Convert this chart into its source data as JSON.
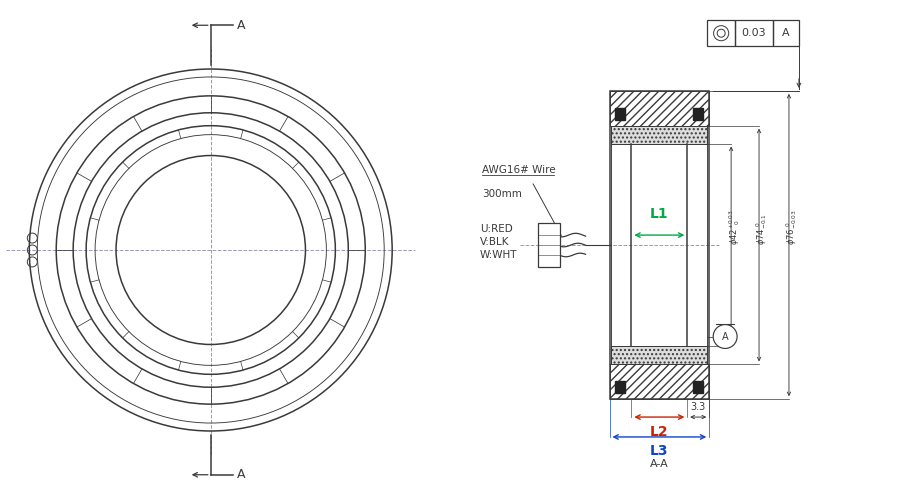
{
  "bg_color": "#ffffff",
  "line_color": "#3a3a3a",
  "cl_color": "#9999bb",
  "L1_color": "#00aa44",
  "L2_color": "#cc2200",
  "L3_color": "#1144cc",
  "tol_value": "0.03",
  "tol_ref": "A",
  "dim_33": "3.3",
  "L1_text": "L1",
  "L2_text": "L2",
  "L3_text": "L3",
  "section_label": "A-A",
  "A_label": "A",
  "A_circle_label": "A",
  "awg_line1": "AWG16# Wire",
  "awg_line2": "300mm",
  "uvw": [
    "U:RED",
    "V:BLK",
    "W:WHT"
  ]
}
